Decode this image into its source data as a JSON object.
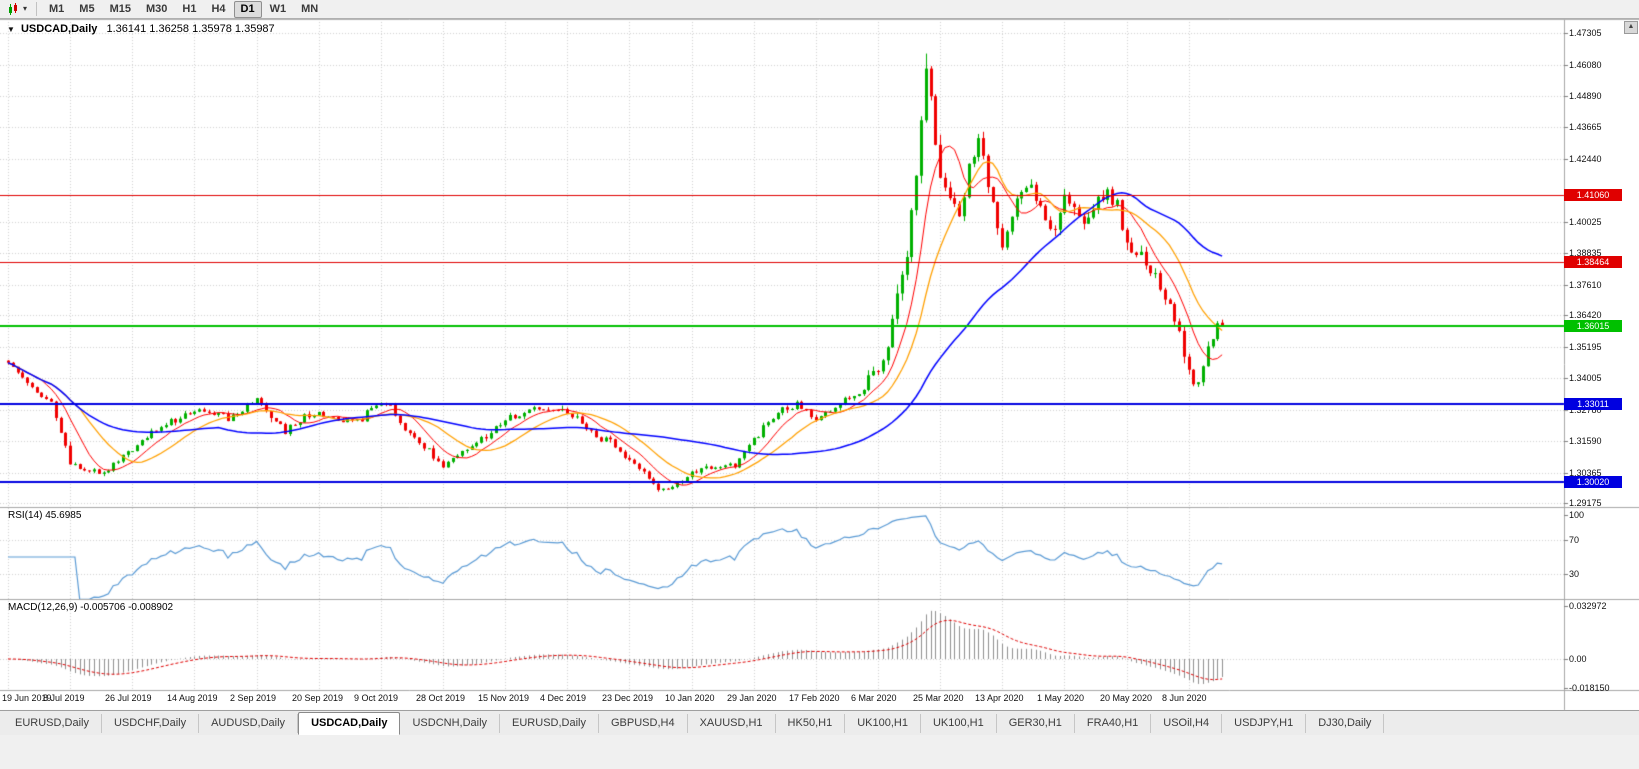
{
  "toolbar": {
    "chart_icon": "candlestick-chart-icon",
    "timeframes": [
      {
        "label": "M1",
        "active": false
      },
      {
        "label": "M5",
        "active": false
      },
      {
        "label": "M15",
        "active": false
      },
      {
        "label": "M30",
        "active": false
      },
      {
        "label": "H1",
        "active": false
      },
      {
        "label": "H4",
        "active": false
      },
      {
        "label": "D1",
        "active": true
      },
      {
        "label": "W1",
        "active": false
      },
      {
        "label": "MN",
        "active": false
      }
    ]
  },
  "chart": {
    "title_symbol": "USDCAD,Daily",
    "title_ohlc": "1.36141 1.36258 1.35978 1.35987",
    "rsi_label": "RSI(14) 45.6985",
    "macd_label": "MACD(12,26,9) -0.005706 -0.008902",
    "scroll_up_glyph": "▲"
  },
  "chart_data": {
    "type": "candlestick",
    "symbol": "USDCAD",
    "timeframe": "Daily",
    "ohlc_display": {
      "open": 1.36141,
      "high": 1.36258,
      "low": 1.35978,
      "close": 1.35987
    },
    "price_axis": {
      "min": 1.29175,
      "max": 1.47305,
      "ticks": [
        {
          "label": "1.47305",
          "price": 1.47305
        },
        {
          "label": "1.46080",
          "price": 1.4608
        },
        {
          "label": "1.44890",
          "price": 1.4489
        },
        {
          "label": "1.43665",
          "price": 1.43665
        },
        {
          "label": "1.42440",
          "price": 1.4244
        },
        {
          "label": "1.40025",
          "price": 1.40025
        },
        {
          "label": "1.38835",
          "price": 1.38835
        },
        {
          "label": "1.37610",
          "price": 1.3761
        },
        {
          "label": "1.36420",
          "price": 1.3642
        },
        {
          "label": "1.35195",
          "price": 1.35195
        },
        {
          "label": "1.34005",
          "price": 1.34005
        },
        {
          "label": "1.32780",
          "price": 1.3278
        },
        {
          "label": "1.31590",
          "price": 1.3159
        },
        {
          "label": "1.30365",
          "price": 1.30365
        },
        {
          "label": "1.29175",
          "price": 1.29175
        }
      ]
    },
    "x_axis": {
      "candles_per_label": 13,
      "labels": [
        "19 Jun 2019",
        "8 Jul 2019",
        "26 Jul 2019",
        "14 Aug 2019",
        "2 Sep 2019",
        "20 Sep 2019",
        "9 Oct 2019",
        "28 Oct 2019",
        "15 Nov 2019",
        "4 Dec 2019",
        "23 Dec 2019",
        "10 Jan 2020",
        "29 Jan 2020",
        "17 Feb 2020",
        "6 Mar 2020",
        "25 Mar 2020",
        "13 Apr 2020",
        "1 May 2020",
        "20 May 2020",
        "8 Jun 2020"
      ]
    },
    "levels": [
      {
        "label": "1.41060",
        "price": 1.4106,
        "color": "#E00000",
        "width": 1
      },
      {
        "label": "1.38464",
        "price": 1.38464,
        "color": "#E00000",
        "width": 1
      },
      {
        "label": "1.36015",
        "price": 1.36015,
        "color": "#00C000",
        "width": 2
      },
      {
        "label": "1.33011",
        "price": 1.33011,
        "color": "#0000E0",
        "width": 2
      },
      {
        "label": "1.30020",
        "price": 1.3002,
        "color": "#0000E0",
        "width": 2
      }
    ],
    "candles": {
      "count": 255,
      "seed": 11,
      "up_color": "#00B000",
      "down_color": "#F00000",
      "anchors": [
        [
          0,
          1.3468
        ],
        [
          3,
          1.3405
        ],
        [
          6,
          1.3352
        ],
        [
          9,
          1.331
        ],
        [
          13,
          1.3075
        ],
        [
          16,
          1.3048
        ],
        [
          19,
          1.303
        ],
        [
          22,
          1.3068
        ],
        [
          26,
          1.3125
        ],
        [
          30,
          1.319
        ],
        [
          33,
          1.3215
        ],
        [
          36,
          1.3255
        ],
        [
          39,
          1.327
        ],
        [
          43,
          1.3262
        ],
        [
          46,
          1.3248
        ],
        [
          49,
          1.3282
        ],
        [
          52,
          1.3318
        ],
        [
          55,
          1.3255
        ],
        [
          58,
          1.3195
        ],
        [
          62,
          1.3248
        ],
        [
          65,
          1.3262
        ],
        [
          68,
          1.3242
        ],
        [
          71,
          1.3228
        ],
        [
          74,
          1.3248
        ],
        [
          78,
          1.3308
        ],
        [
          80,
          1.3295
        ],
        [
          82,
          1.3225
        ],
        [
          85,
          1.3168
        ],
        [
          88,
          1.3125
        ],
        [
          91,
          1.3062
        ],
        [
          94,
          1.3095
        ],
        [
          97,
          1.3148
        ],
        [
          100,
          1.3185
        ],
        [
          104,
          1.3232
        ],
        [
          107,
          1.3262
        ],
        [
          110,
          1.3288
        ],
        [
          113,
          1.3282
        ],
        [
          117,
          1.3272
        ],
        [
          120,
          1.3232
        ],
        [
          123,
          1.3172
        ],
        [
          126,
          1.3155
        ],
        [
          130,
          1.3082
        ],
        [
          133,
          1.304
        ],
        [
          136,
          1.2972
        ],
        [
          139,
          1.2985
        ],
        [
          143,
          1.3042
        ],
        [
          146,
          1.3055
        ],
        [
          149,
          1.3052
        ],
        [
          152,
          1.3068
        ],
        [
          156,
          1.3165
        ],
        [
          159,
          1.3228
        ],
        [
          162,
          1.3278
        ],
        [
          165,
          1.3298
        ],
        [
          169,
          1.3242
        ],
        [
          172,
          1.3262
        ],
        [
          175,
          1.3318
        ],
        [
          178,
          1.3342
        ],
        [
          182,
          1.3422
        ],
        [
          184,
          1.3548
        ],
        [
          186,
          1.3712
        ],
        [
          188,
          1.3858
        ],
        [
          190,
          1.4215
        ],
        [
          192,
          1.4565
        ],
        [
          193,
          1.4495
        ],
        [
          195,
          1.4222
        ],
        [
          197,
          1.4085
        ],
        [
          199,
          1.4022
        ],
        [
          201,
          1.4222
        ],
        [
          203,
          1.4285
        ],
        [
          205,
          1.4165
        ],
        [
          208,
          1.3905
        ],
        [
          210,
          1.4025
        ],
        [
          212,
          1.4108
        ],
        [
          214,
          1.4125
        ],
        [
          217,
          1.4008
        ],
        [
          219,
          1.3962
        ],
        [
          221,
          1.4098
        ],
        [
          223,
          1.4062
        ],
        [
          225,
          1.3985
        ],
        [
          227,
          1.4052
        ],
        [
          230,
          1.4108
        ],
        [
          232,
          1.4062
        ],
        [
          234,
          1.3922
        ],
        [
          236,
          1.3892
        ],
        [
          238,
          1.3852
        ],
        [
          240,
          1.3782
        ],
        [
          242,
          1.3705
        ],
        [
          244,
          1.3625
        ],
        [
          246,
          1.3495
        ],
        [
          248,
          1.3382
        ],
        [
          249,
          1.3368
        ],
        [
          250,
          1.3448
        ],
        [
          251,
          1.3522
        ],
        [
          252,
          1.3555
        ],
        [
          253,
          1.3588
        ],
        [
          254,
          1.3598
        ]
      ],
      "volatility": [
        [
          0,
          0.0026
        ],
        [
          180,
          0.006
        ],
        [
          186,
          0.011
        ],
        [
          196,
          0.0085
        ],
        [
          206,
          0.006
        ],
        [
          236,
          0.0048
        ],
        [
          249,
          0.0038
        ]
      ],
      "last_ohlc": [
        1.36141,
        1.36258,
        1.35978,
        1.35987
      ]
    },
    "moving_averages": [
      {
        "period": 8,
        "color": "#FF0000",
        "width": 1
      },
      {
        "period": 16,
        "color": "#FFA000",
        "width": 1.25
      },
      {
        "period": 45,
        "color": "#0000FF",
        "width": 1.5
      }
    ],
    "rsi": {
      "period": 14,
      "current": 45.6985,
      "color": "#5B9BD5",
      "levels": [
        70,
        30
      ],
      "axis_labels": [
        "100",
        "70",
        "30"
      ],
      "axis_values": [
        100,
        70,
        30
      ]
    },
    "macd": {
      "fast": 12,
      "slow": 26,
      "signal": 9,
      "current": [
        -0.005706,
        -0.008902
      ],
      "axis_labels": [
        "0.032972",
        "0.00",
        "-0.018150"
      ],
      "axis_values": [
        0.032972,
        0,
        -0.01815
      ],
      "histogram_color": "#909090",
      "signal_color": "#E00000"
    }
  },
  "tabs": [
    {
      "label": "EURUSD,Daily",
      "active": false
    },
    {
      "label": "USDCHF,Daily",
      "active": false
    },
    {
      "label": "AUDUSD,Daily",
      "active": false
    },
    {
      "label": "USDCAD,Daily",
      "active": true
    },
    {
      "label": "USDCNH,Daily",
      "active": false
    },
    {
      "label": "EURUSD,Daily",
      "active": false
    },
    {
      "label": "GBPUSD,H4",
      "active": false
    },
    {
      "label": "XAUUSD,H1",
      "active": false
    },
    {
      "label": "HK50,H1",
      "active": false
    },
    {
      "label": "UK100,H1",
      "active": false
    },
    {
      "label": "UK100,H1",
      "active": false
    },
    {
      "label": "GER30,H1",
      "active": false
    },
    {
      "label": "FRA40,H1",
      "active": false
    },
    {
      "label": "USOil,H4",
      "active": false
    },
    {
      "label": "USDJPY,H1",
      "active": false
    },
    {
      "label": "DJ30,Daily",
      "active": false
    }
  ]
}
